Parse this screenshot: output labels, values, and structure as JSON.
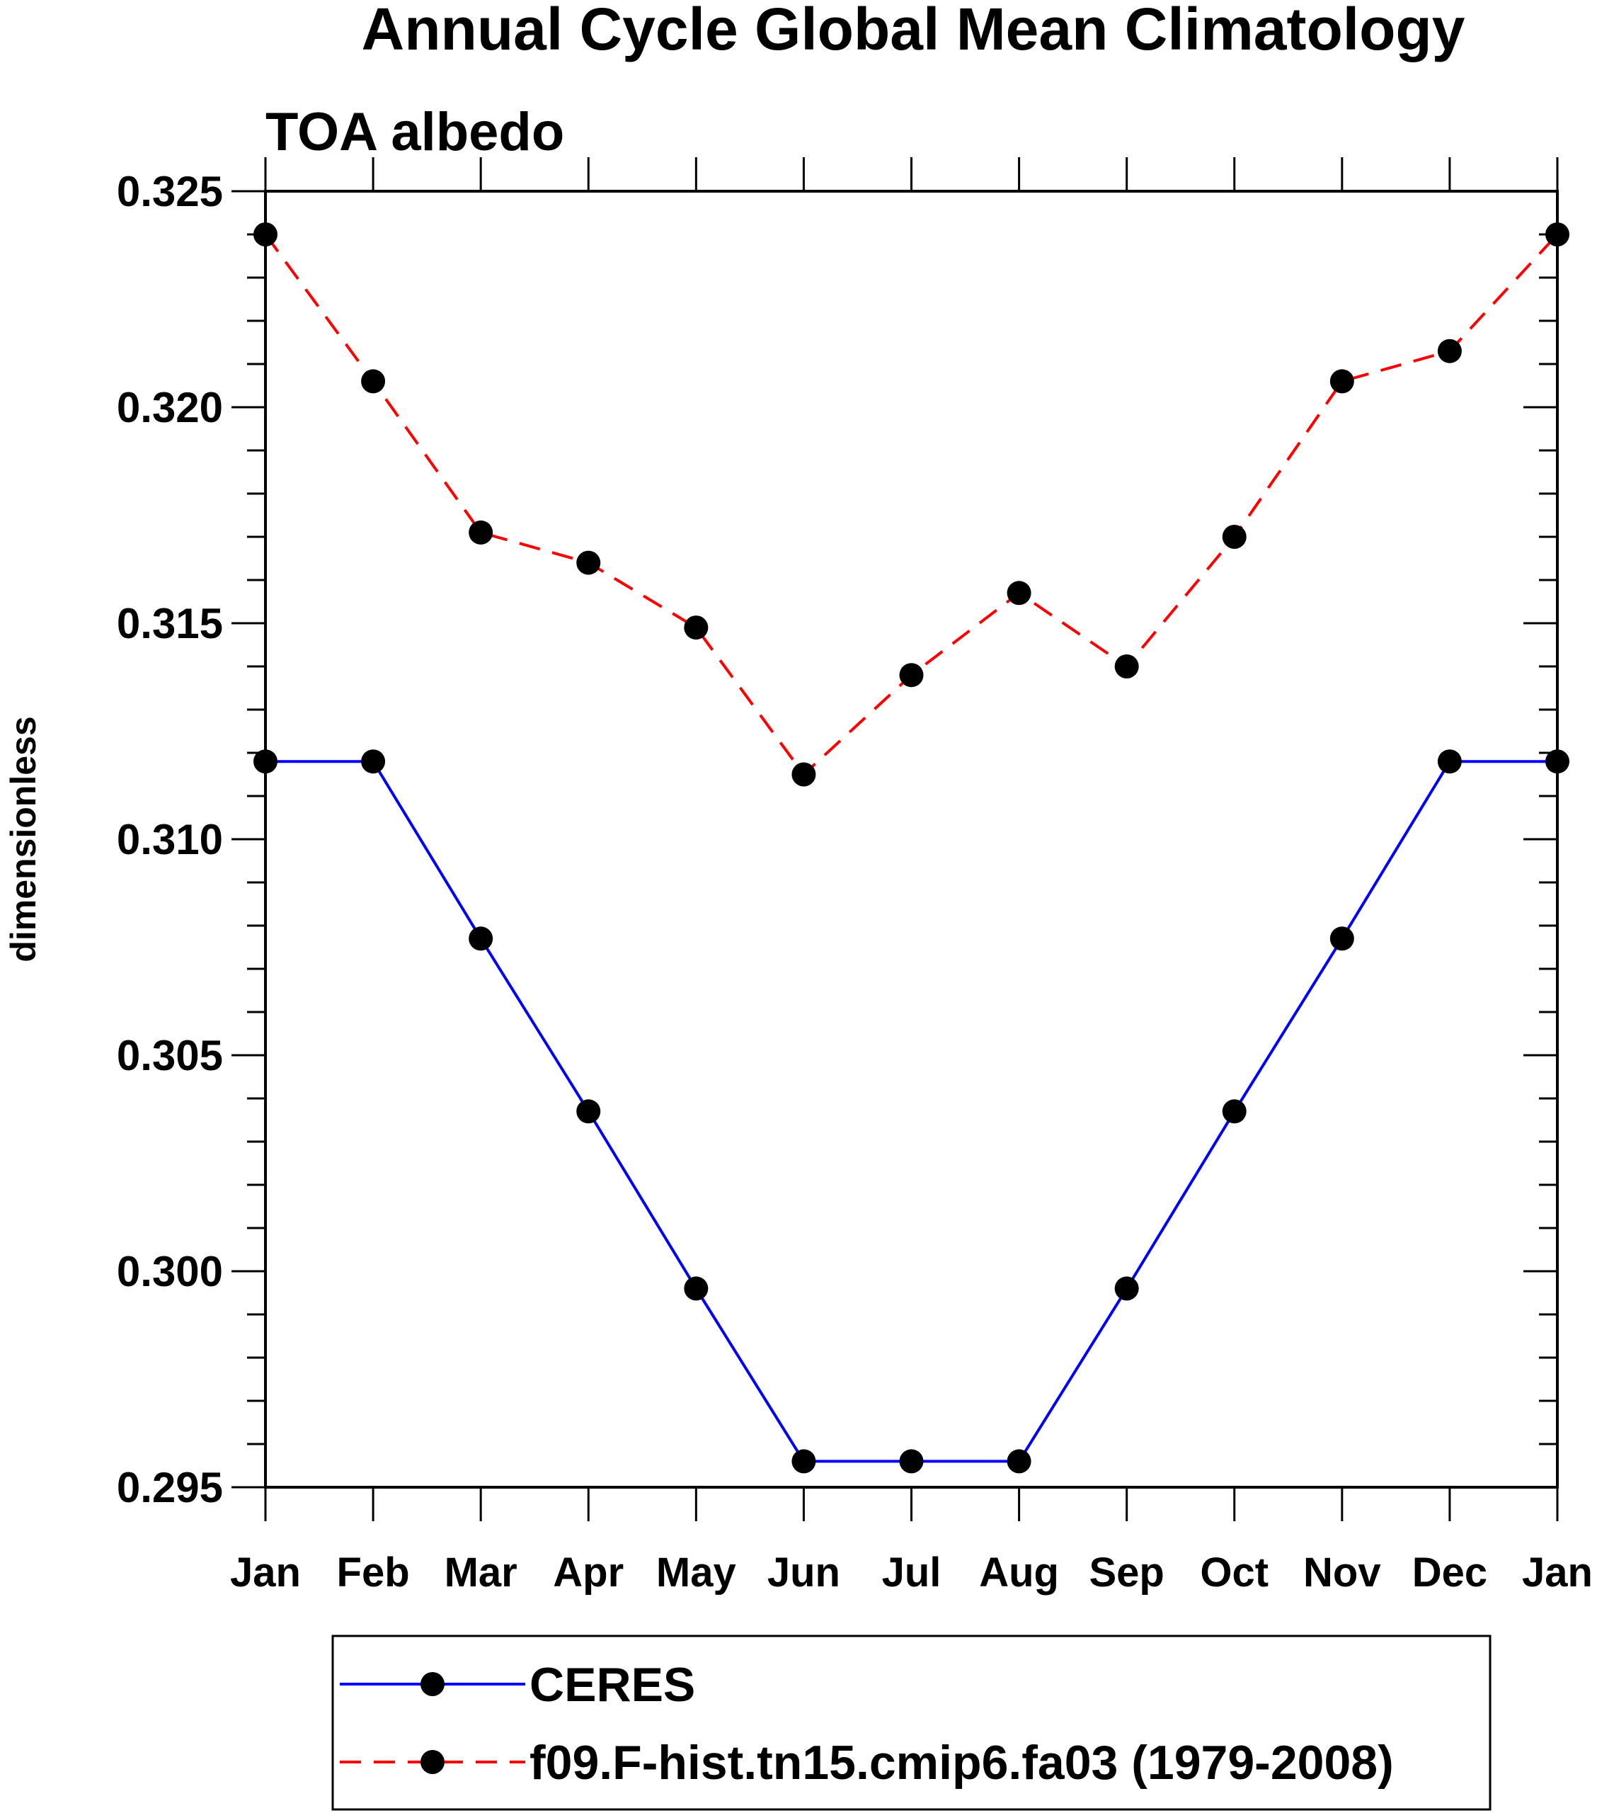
{
  "chart_data": {
    "type": "line",
    "title": "Annual Cycle Global Mean Climatology",
    "subtitle": "TOA albedo",
    "xlabel": "",
    "ylabel": "dimensionless",
    "categories": [
      "Jan",
      "Feb",
      "Mar",
      "Apr",
      "May",
      "Jun",
      "Jul",
      "Aug",
      "Sep",
      "Oct",
      "Nov",
      "Dec",
      "Jan"
    ],
    "ylim": [
      0.295,
      0.325
    ],
    "yticks": [
      "0.295",
      "0.300",
      "0.305",
      "0.310",
      "0.315",
      "0.320",
      "0.325"
    ],
    "grid": false,
    "legend_position": "bottom",
    "series": [
      {
        "name": "CERES",
        "color": "#0000ff",
        "line_style": "solid",
        "marker": "filled-circle",
        "values": [
          0.3118,
          0.3118,
          0.3077,
          0.3037,
          0.2996,
          0.2956,
          0.2956,
          0.2956,
          0.2996,
          0.3037,
          0.3077,
          0.3118,
          0.3118
        ]
      },
      {
        "name": "f09.F-hist.tn15.cmip6.fa03 (1979-2008)",
        "color": "#ff0000",
        "line_style": "dashed",
        "marker": "filled-circle",
        "values": [
          0.324,
          0.3206,
          0.3171,
          0.3164,
          0.3149,
          0.3115,
          0.3138,
          0.3157,
          0.314,
          0.317,
          0.3206,
          0.3213,
          0.324
        ]
      }
    ]
  }
}
